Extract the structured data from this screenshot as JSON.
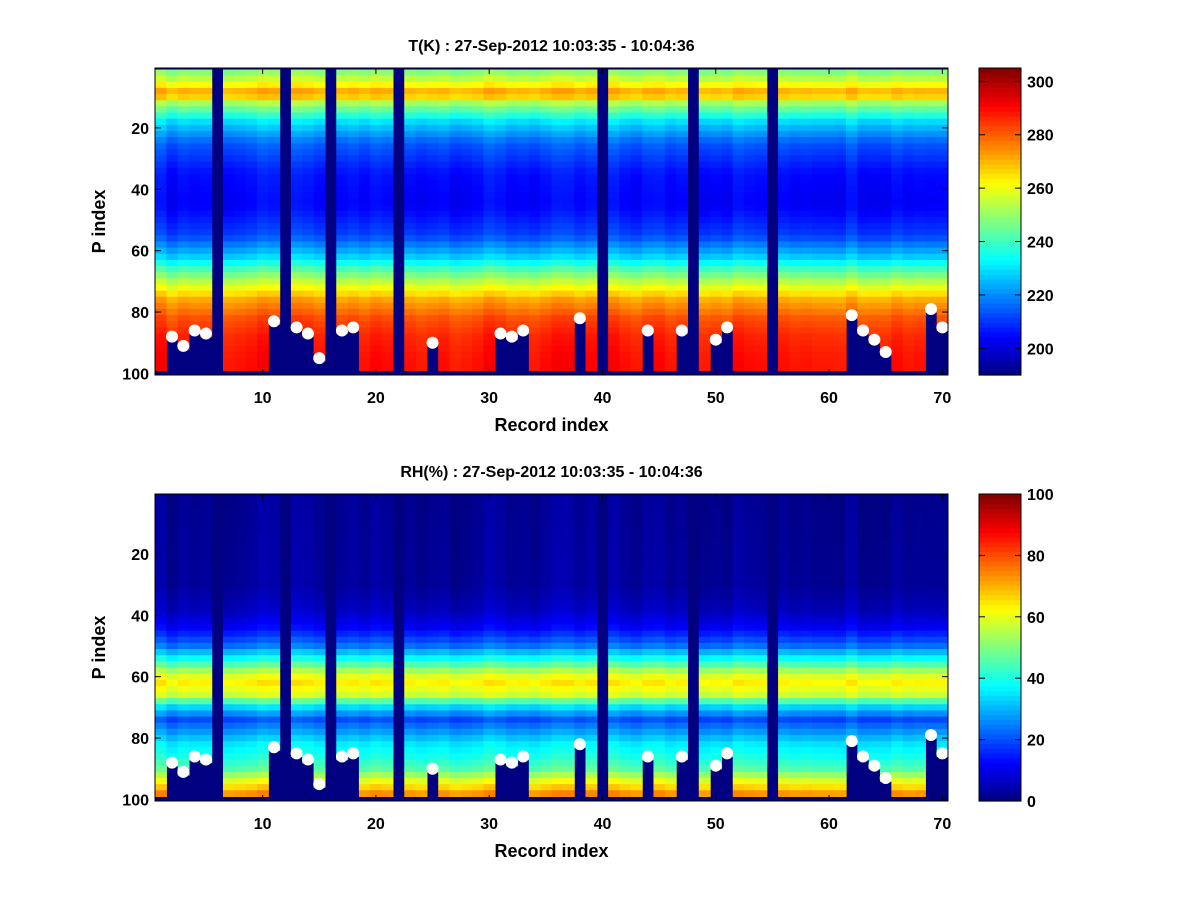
{
  "chart_data": [
    {
      "type": "heatmap",
      "title": "T(K) : 27-Sep-2012 10:03:35 - 10:04:36",
      "xlabel": "Record index",
      "ylabel": "P index",
      "xlim": [
        1,
        70
      ],
      "ylim": [
        100,
        1
      ],
      "x_ticks": [
        "10",
        "20",
        "30",
        "40",
        "50",
        "60",
        "70"
      ],
      "y_ticks": [
        "20",
        "40",
        "60",
        "80",
        "100"
      ],
      "colorbar": {
        "min": 190,
        "max": 305,
        "ticks": [
          "200",
          "220",
          "240",
          "260",
          "280",
          "300"
        ]
      },
      "colormap": "jet",
      "profile_p": [
        1,
        5,
        9,
        12,
        18,
        25,
        35,
        45,
        55,
        62,
        70,
        76,
        82,
        88,
        94,
        100
      ],
      "profile_values": [
        246,
        258,
        275,
        252,
        230,
        215,
        206,
        204,
        212,
        228,
        254,
        272,
        282,
        287,
        289,
        290
      ],
      "gap_records": [
        6,
        12,
        16,
        22,
        40,
        48,
        55
      ],
      "markers": [
        [
          2,
          88
        ],
        [
          3,
          91
        ],
        [
          4,
          86
        ],
        [
          5,
          87
        ],
        [
          11,
          83
        ],
        [
          13,
          85
        ],
        [
          14,
          87
        ],
        [
          15,
          95
        ],
        [
          17,
          86
        ],
        [
          18,
          85
        ],
        [
          25,
          90
        ],
        [
          31,
          87
        ],
        [
          32,
          88
        ],
        [
          33,
          86
        ],
        [
          38,
          82
        ],
        [
          44,
          86
        ],
        [
          47,
          86
        ],
        [
          50,
          89
        ],
        [
          51,
          85
        ],
        [
          62,
          81
        ],
        [
          63,
          86
        ],
        [
          64,
          89
        ],
        [
          65,
          93
        ],
        [
          69,
          79
        ],
        [
          70,
          85
        ]
      ]
    },
    {
      "type": "heatmap",
      "title": "RH(%) : 27-Sep-2012 10:03:35 - 10:04:36",
      "xlabel": "Record index",
      "ylabel": "P index",
      "xlim": [
        1,
        70
      ],
      "ylim": [
        100,
        1
      ],
      "x_ticks": [
        "10",
        "20",
        "30",
        "40",
        "50",
        "60",
        "70"
      ],
      "y_ticks": [
        "20",
        "40",
        "60",
        "80",
        "100"
      ],
      "colorbar": {
        "min": 0,
        "max": 100,
        "ticks": [
          "0",
          "20",
          "40",
          "60",
          "80",
          "100"
        ]
      },
      "colormap": "jet",
      "profile_p": [
        1,
        30,
        38,
        44,
        50,
        55,
        59,
        62,
        66,
        70,
        74,
        78,
        82,
        86,
        90,
        94,
        100
      ],
      "profile_values": [
        2,
        3,
        6,
        12,
        24,
        42,
        58,
        64,
        58,
        34,
        20,
        28,
        36,
        40,
        46,
        60,
        80
      ],
      "gap_records": [
        6,
        12,
        16,
        22,
        40,
        48,
        55
      ],
      "markers": [
        [
          2,
          88
        ],
        [
          3,
          91
        ],
        [
          4,
          86
        ],
        [
          5,
          87
        ],
        [
          11,
          83
        ],
        [
          13,
          85
        ],
        [
          14,
          87
        ],
        [
          15,
          95
        ],
        [
          17,
          86
        ],
        [
          18,
          85
        ],
        [
          25,
          90
        ],
        [
          31,
          87
        ],
        [
          32,
          88
        ],
        [
          33,
          86
        ],
        [
          38,
          82
        ],
        [
          44,
          86
        ],
        [
          47,
          86
        ],
        [
          50,
          89
        ],
        [
          51,
          85
        ],
        [
          62,
          81
        ],
        [
          63,
          86
        ],
        [
          64,
          89
        ],
        [
          65,
          93
        ],
        [
          69,
          79
        ],
        [
          70,
          85
        ]
      ]
    }
  ]
}
